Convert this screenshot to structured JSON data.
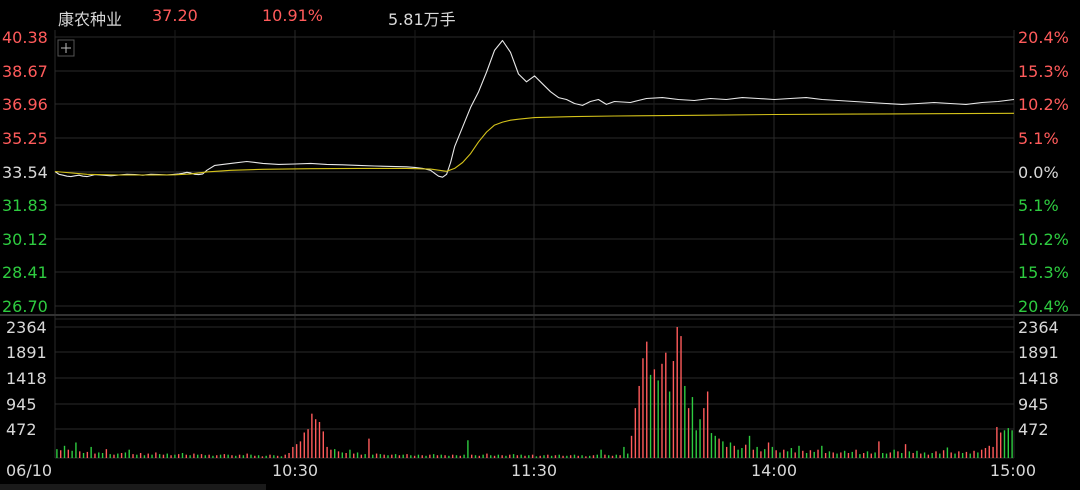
{
  "header": {
    "name": "康农种业",
    "price": "37.20",
    "change_pct": "10.91%",
    "volume": "5.81万手"
  },
  "colors": {
    "up": "#ff5b5b",
    "down": "#2ecc40",
    "neutral": "#d8d8d8",
    "price_line": "#e8e8e8",
    "avg_line": "#d4c21a",
    "grid": "#2a2a2a"
  },
  "icons": {
    "crosshair": "plus-icon"
  },
  "chart_data": [
    {
      "type": "line",
      "ylim": [
        26.7,
        40.38
      ],
      "y_ticks_left": [
        "40.38",
        "38.67",
        "36.96",
        "35.25",
        "33.54",
        "31.83",
        "30.12",
        "28.41",
        "26.70"
      ],
      "y_ticks_right": [
        "20.4%",
        "15.3%",
        "10.2%",
        "5.1%",
        "0.0%",
        "5.1%",
        "10.2%",
        "15.3%",
        "20.4%"
      ],
      "x_ticks": [
        "06/10",
        "10:30",
        "11:30",
        "14:00",
        "15:00"
      ],
      "series": [
        {
          "role": "price",
          "x": [
            0,
            1,
            2,
            3,
            4,
            5,
            6,
            7,
            8,
            9,
            10,
            12,
            14,
            16,
            18,
            20,
            22,
            24,
            26,
            28,
            30,
            31,
            32,
            33,
            34,
            35,
            36,
            37,
            38,
            40,
            44,
            48,
            52,
            56,
            60,
            64,
            68,
            72,
            76,
            80,
            84,
            88,
            90,
            92,
            94,
            95,
            96,
            97,
            98,
            99,
            100,
            102,
            104,
            106,
            108,
            110,
            112,
            114,
            116,
            118,
            120,
            122,
            124,
            126,
            128,
            130,
            132,
            134,
            136,
            138,
            140,
            144,
            148,
            152,
            156,
            160,
            164,
            168,
            172,
            176,
            180,
            184,
            188,
            192,
            196,
            200,
            204,
            208,
            212,
            216,
            220,
            224,
            228,
            232,
            236,
            240
          ],
          "values": [
            33.54,
            33.4,
            33.35,
            33.3,
            33.28,
            33.32,
            33.35,
            33.3,
            33.28,
            33.33,
            33.38,
            33.35,
            33.32,
            33.36,
            33.4,
            33.38,
            33.35,
            33.4,
            33.38,
            33.36,
            33.4,
            33.42,
            33.45,
            33.5,
            33.46,
            33.4,
            33.38,
            33.42,
            33.6,
            33.85,
            33.95,
            34.05,
            33.95,
            33.9,
            33.92,
            33.95,
            33.9,
            33.88,
            33.85,
            33.82,
            33.8,
            33.78,
            33.75,
            33.7,
            33.6,
            33.45,
            33.3,
            33.25,
            33.4,
            34.0,
            34.8,
            35.8,
            36.8,
            37.6,
            38.6,
            39.7,
            40.2,
            39.6,
            38.5,
            38.1,
            38.4,
            38.0,
            37.6,
            37.3,
            37.2,
            37.0,
            36.9,
            37.1,
            37.2,
            36.95,
            37.1,
            37.05,
            37.25,
            37.3,
            37.2,
            37.15,
            37.25,
            37.2,
            37.3,
            37.25,
            37.2,
            37.25,
            37.3,
            37.2,
            37.15,
            37.1,
            37.05,
            37.0,
            36.95,
            37.0,
            37.05,
            37.0,
            36.95,
            37.05,
            37.1,
            37.2
          ]
        },
        {
          "role": "average",
          "x": [
            0,
            8,
            16,
            24,
            30,
            34,
            38,
            44,
            52,
            64,
            76,
            88,
            94,
            98,
            100,
            102,
            104,
            106,
            108,
            110,
            112,
            114,
            116,
            120,
            130,
            140,
            160,
            180,
            200,
            220,
            240
          ],
          "values": [
            33.54,
            33.4,
            33.36,
            33.36,
            33.37,
            33.42,
            33.52,
            33.6,
            33.65,
            33.68,
            33.7,
            33.7,
            33.66,
            33.55,
            33.7,
            34.0,
            34.45,
            35.05,
            35.55,
            35.9,
            36.05,
            36.15,
            36.2,
            36.28,
            36.33,
            36.36,
            36.4,
            36.44,
            36.46,
            36.48,
            36.5
          ]
        }
      ]
    },
    {
      "type": "bar",
      "ylim": [
        0,
        2364
      ],
      "y_ticks": [
        "2364",
        "1891",
        "1418",
        "945",
        "472"
      ],
      "values": [
        160,
        140,
        220,
        150,
        130,
        280,
        120,
        90,
        110,
        200,
        80,
        100,
        90,
        160,
        70,
        60,
        80,
        90,
        100,
        150,
        70,
        60,
        90,
        50,
        80,
        60,
        100,
        70,
        60,
        80,
        50,
        60,
        70,
        90,
        60,
        50,
        80,
        60,
        70,
        50,
        60,
        40,
        50,
        60,
        70,
        60,
        50,
        40,
        60,
        50,
        80,
        60,
        40,
        50,
        30,
        40,
        60,
        50,
        40,
        30,
        60,
        90,
        200,
        250,
        300,
        460,
        520,
        800,
        700,
        650,
        480,
        200,
        150,
        160,
        120,
        100,
        90,
        150,
        80,
        100,
        60,
        70,
        350,
        60,
        80,
        70,
        60,
        50,
        60,
        70,
        50,
        60,
        70,
        50,
        40,
        60,
        50,
        40,
        60,
        70,
        50,
        60,
        50,
        40,
        60,
        50,
        40,
        60,
        320,
        60,
        50,
        40,
        60,
        80,
        50,
        40,
        60,
        50,
        40,
        60,
        70,
        50,
        60,
        40,
        50,
        60,
        30,
        40,
        50,
        60,
        40,
        50,
        60,
        40,
        40,
        50,
        60,
        40,
        50,
        30,
        40,
        50,
        60,
        150,
        60,
        50,
        40,
        60,
        50,
        200,
        80,
        400,
        900,
        1300,
        1800,
        2100,
        1500,
        1600,
        1400,
        1700,
        1900,
        1200,
        1750,
        2364,
        2200,
        1300,
        900,
        1100,
        500,
        700,
        900,
        1200,
        450,
        400,
        350,
        300,
        200,
        280,
        220,
        150,
        180,
        240,
        400,
        150,
        200,
        120,
        160,
        280,
        200,
        140,
        100,
        150,
        120,
        180,
        100,
        220,
        130,
        90,
        140,
        110,
        150,
        220,
        90,
        120,
        100,
        80,
        100,
        130,
        90,
        110,
        150,
        70,
        90,
        120,
        80,
        100,
        300,
        90,
        80,
        100,
        150,
        120,
        90,
        250,
        120,
        90,
        130,
        80,
        100,
        60,
        90,
        120,
        80,
        140,
        190,
        100,
        80,
        120,
        90,
        110,
        80,
        130,
        100,
        150,
        180,
        220,
        200,
        560,
        460,
        500,
        540,
        500
      ],
      "directions": [
        "d",
        "u",
        "d",
        "u",
        "d",
        "d",
        "u",
        "d",
        "u",
        "d",
        "u",
        "d",
        "d",
        "u",
        "d",
        "u",
        "d",
        "u",
        "d",
        "d",
        "u",
        "d",
        "u",
        "d",
        "u",
        "d",
        "u",
        "d",
        "u",
        "d",
        "u",
        "d",
        "u",
        "d",
        "u",
        "d",
        "u",
        "d",
        "u",
        "d",
        "u",
        "d",
        "u",
        "d",
        "u",
        "d",
        "u",
        "d",
        "u",
        "d",
        "u",
        "d",
        "u",
        "d",
        "u",
        "d",
        "u",
        "d",
        "u",
        "d",
        "u",
        "u",
        "u",
        "u",
        "u",
        "u",
        "u",
        "u",
        "u",
        "u",
        "u",
        "u",
        "u",
        "d",
        "u",
        "d",
        "u",
        "d",
        "u",
        "d",
        "u",
        "d",
        "u",
        "d",
        "u",
        "d",
        "u",
        "d",
        "u",
        "d",
        "u",
        "d",
        "u",
        "d",
        "u",
        "d",
        "u",
        "d",
        "u",
        "d",
        "u",
        "d",
        "u",
        "d",
        "u",
        "d",
        "u",
        "d",
        "d",
        "u",
        "d",
        "u",
        "d",
        "u",
        "d",
        "u",
        "d",
        "u",
        "d",
        "u",
        "d",
        "u",
        "d",
        "u",
        "d",
        "u",
        "d",
        "u",
        "d",
        "u",
        "d",
        "u",
        "d",
        "u",
        "d",
        "u",
        "d",
        "u",
        "d",
        "u",
        "d",
        "u",
        "d",
        "d",
        "u",
        "d",
        "u",
        "d",
        "u",
        "d",
        "d",
        "u",
        "u",
        "u",
        "u",
        "u",
        "d",
        "u",
        "d",
        "u",
        "u",
        "d",
        "u",
        "u",
        "u",
        "d",
        "u",
        "d",
        "d",
        "d",
        "u",
        "u",
        "d",
        "d",
        "u",
        "d",
        "u",
        "d",
        "u",
        "d",
        "d",
        "u",
        "d",
        "u",
        "d",
        "u",
        "d",
        "u",
        "d",
        "u",
        "d",
        "u",
        "d",
        "d",
        "u",
        "d",
        "u",
        "d",
        "u",
        "d",
        "u",
        "d",
        "u",
        "d",
        "u",
        "d",
        "u",
        "d",
        "u",
        "d",
        "u",
        "d",
        "u",
        "d",
        "u",
        "d",
        "u",
        "d",
        "d",
        "u",
        "d",
        "u",
        "d",
        "u",
        "d",
        "u",
        "d",
        "u",
        "d",
        "u",
        "d",
        "u",
        "d",
        "u",
        "d",
        "u",
        "d",
        "u",
        "d",
        "u",
        "d",
        "u",
        "d",
        "u",
        "u",
        "u",
        "u",
        "u",
        "u"
      ]
    }
  ]
}
